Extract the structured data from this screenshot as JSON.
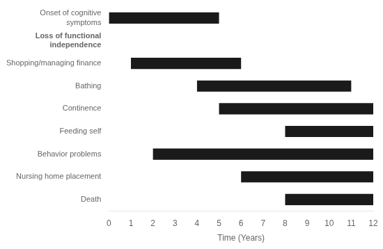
{
  "chart_data": {
    "type": "bar",
    "orientation": "horizontal",
    "categories": [
      "Onset of cognitive\nsymptoms",
      "Shopping/managing finance",
      "Bathing",
      "Continence",
      "Feeding self",
      "Behavior problems",
      "Nursing home placement",
      "Death"
    ],
    "values": [
      [
        0,
        5
      ],
      [
        1,
        6
      ],
      [
        4,
        11
      ],
      [
        5,
        12
      ],
      [
        8,
        12
      ],
      [
        2,
        12
      ],
      [
        6,
        12
      ],
      [
        8,
        12
      ]
    ],
    "color": "#1a1a1a",
    "xlabel": "Time (Years)",
    "xlim": [
      0,
      12
    ],
    "xticks": [
      0,
      1,
      2,
      3,
      4,
      5,
      6,
      7,
      8,
      9,
      10,
      11,
      12
    ],
    "grid": false,
    "annotations": [
      {
        "text": "Loss of functional\nindependence",
        "before": "Shopping/managing finance"
      }
    ]
  }
}
